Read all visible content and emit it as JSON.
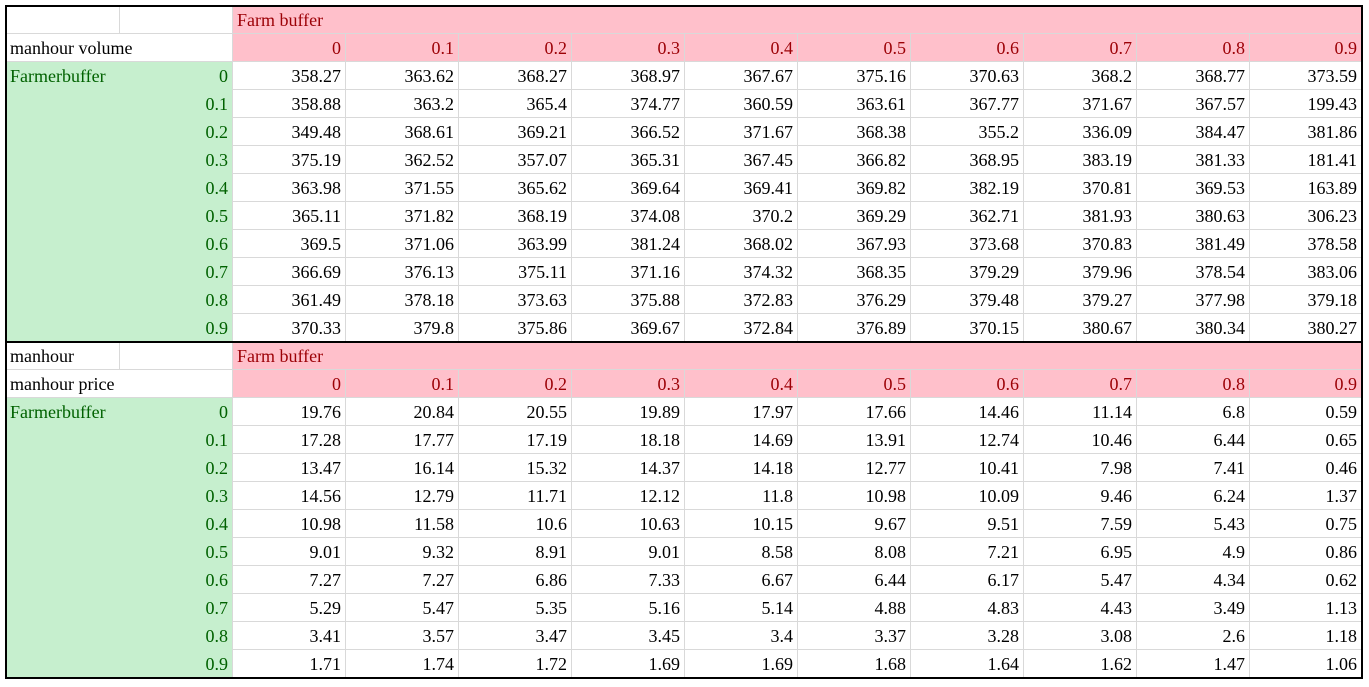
{
  "columns": [
    "0",
    "0.1",
    "0.2",
    "0.3",
    "0.4",
    "0.5",
    "0.6",
    "0.7",
    "0.8",
    "0.9"
  ],
  "row_labels": [
    "0",
    "0.1",
    "0.2",
    "0.3",
    "0.4",
    "0.5",
    "0.6",
    "0.7",
    "0.8",
    "0.9"
  ],
  "colors": {
    "pink_fill": "#ffc0cb",
    "pink_text": "#9c0006",
    "green_fill": "#c6efce",
    "green_text": "#006100"
  },
  "tables": [
    {
      "header_label_top": "",
      "header_label_bottom": "manhour volume",
      "column_group": "Farm buffer",
      "row_group": "Farmerbuffer",
      "rows": [
        [
          "358.27",
          "363.62",
          "368.27",
          "368.97",
          "367.67",
          "375.16",
          "370.63",
          "368.2",
          "368.77",
          "373.59"
        ],
        [
          "358.88",
          "363.2",
          "365.4",
          "374.77",
          "360.59",
          "363.61",
          "367.77",
          "371.67",
          "367.57",
          "199.43"
        ],
        [
          "349.48",
          "368.61",
          "369.21",
          "366.52",
          "371.67",
          "368.38",
          "355.2",
          "336.09",
          "384.47",
          "381.86"
        ],
        [
          "375.19",
          "362.52",
          "357.07",
          "365.31",
          "367.45",
          "366.82",
          "368.95",
          "383.19",
          "381.33",
          "181.41"
        ],
        [
          "363.98",
          "371.55",
          "365.62",
          "369.64",
          "369.41",
          "369.82",
          "382.19",
          "370.81",
          "369.53",
          "163.89"
        ],
        [
          "365.11",
          "371.82",
          "368.19",
          "374.08",
          "370.2",
          "369.29",
          "362.71",
          "381.93",
          "380.63",
          "306.23"
        ],
        [
          "369.5",
          "371.06",
          "363.99",
          "381.24",
          "368.02",
          "367.93",
          "373.68",
          "370.83",
          "381.49",
          "378.58"
        ],
        [
          "366.69",
          "376.13",
          "375.11",
          "371.16",
          "374.32",
          "368.35",
          "379.29",
          "379.96",
          "378.54",
          "383.06"
        ],
        [
          "361.49",
          "378.18",
          "373.63",
          "375.88",
          "372.83",
          "376.29",
          "379.48",
          "379.27",
          "377.98",
          "379.18"
        ],
        [
          "370.33",
          "379.8",
          "375.86",
          "369.67",
          "372.84",
          "376.89",
          "370.15",
          "380.67",
          "380.34",
          "380.27"
        ]
      ]
    },
    {
      "header_label_top": "manhour",
      "header_label_bottom": "manhour price",
      "column_group": "Farm buffer",
      "row_group": "Farmerbuffer",
      "rows": [
        [
          "19.76",
          "20.84",
          "20.55",
          "19.89",
          "17.97",
          "17.66",
          "14.46",
          "11.14",
          "6.8",
          "0.59"
        ],
        [
          "17.28",
          "17.77",
          "17.19",
          "18.18",
          "14.69",
          "13.91",
          "12.74",
          "10.46",
          "6.44",
          "0.65"
        ],
        [
          "13.47",
          "16.14",
          "15.32",
          "14.37",
          "14.18",
          "12.77",
          "10.41",
          "7.98",
          "7.41",
          "0.46"
        ],
        [
          "14.56",
          "12.79",
          "11.71",
          "12.12",
          "11.8",
          "10.98",
          "10.09",
          "9.46",
          "6.24",
          "1.37"
        ],
        [
          "10.98",
          "11.58",
          "10.6",
          "10.63",
          "10.15",
          "9.67",
          "9.51",
          "7.59",
          "5.43",
          "0.75"
        ],
        [
          "9.01",
          "9.32",
          "8.91",
          "9.01",
          "8.58",
          "8.08",
          "7.21",
          "6.95",
          "4.9",
          "0.86"
        ],
        [
          "7.27",
          "7.27",
          "6.86",
          "7.33",
          "6.67",
          "6.44",
          "6.17",
          "5.47",
          "4.34",
          "0.62"
        ],
        [
          "5.29",
          "5.47",
          "5.35",
          "5.16",
          "5.14",
          "4.88",
          "4.83",
          "4.43",
          "3.49",
          "1.13"
        ],
        [
          "3.41",
          "3.57",
          "3.47",
          "3.45",
          "3.4",
          "3.37",
          "3.28",
          "3.08",
          "2.6",
          "1.18"
        ],
        [
          "1.71",
          "1.74",
          "1.72",
          "1.69",
          "1.69",
          "1.68",
          "1.64",
          "1.62",
          "1.47",
          "1.06"
        ]
      ]
    }
  ]
}
